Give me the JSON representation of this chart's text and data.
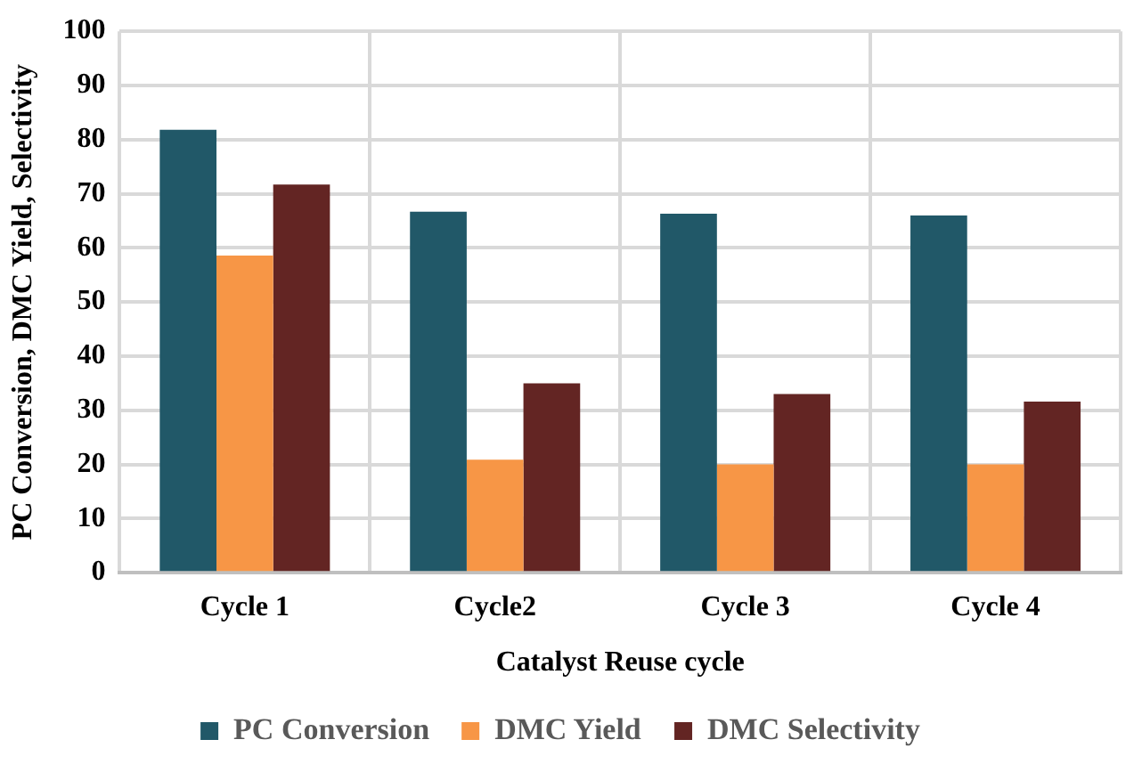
{
  "chart_data": {
    "type": "bar",
    "xlabel": "Catalyst Reuse cycle",
    "ylabel": "PC Conversion, DMC Yield, Selectivity",
    "categories": [
      "Cycle 1",
      "Cycle2",
      "Cycle 3",
      "Cycle 4"
    ],
    "series": [
      {
        "name": "PC Conversion",
        "color": "#215868",
        "values": [
          81.8,
          66.7,
          66.3,
          66
        ]
      },
      {
        "name": "DMC Yield",
        "color": "#f79646",
        "values": [
          58.6,
          20.9,
          20,
          20
        ]
      },
      {
        "name": "DMC Selectivity",
        "color": "#632523",
        "values": [
          71.7,
          35,
          33,
          31.6
        ]
      }
    ],
    "ylim": [
      0,
      100
    ],
    "yticks": [
      0,
      10,
      20,
      30,
      40,
      50,
      60,
      70,
      80,
      90,
      100
    ],
    "grid": true,
    "legend": "bottom"
  }
}
